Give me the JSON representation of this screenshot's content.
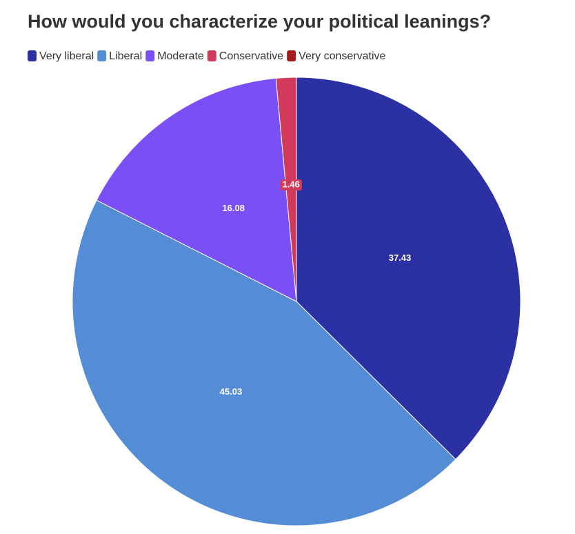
{
  "chart_data": {
    "type": "pie",
    "title": "How would you characterize your political leanings?",
    "categories": [
      "Very liberal",
      "Liberal",
      "Moderate",
      "Conservative",
      "Very conservative"
    ],
    "values": [
      37.43,
      45.03,
      16.08,
      1.46,
      0
    ],
    "colors": [
      "#2b31a3",
      "#548cd6",
      "#7a4ff5",
      "#d13a5a",
      "#a51c1c"
    ]
  }
}
